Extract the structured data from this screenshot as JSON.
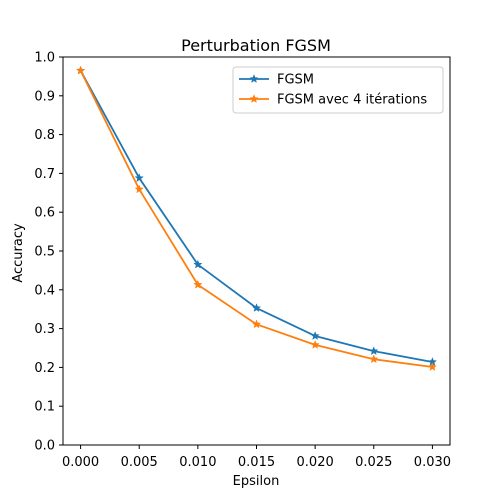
{
  "chart_data": {
    "type": "line",
    "title": "Perturbation FGSM",
    "xlabel": "Epsilon",
    "ylabel": "Accuracy",
    "x": [
      0.0,
      0.005,
      0.01,
      0.015,
      0.02,
      0.025,
      0.03
    ],
    "x_tick_labels": [
      "0.000",
      "0.005",
      "0.010",
      "0.015",
      "0.020",
      "0.025",
      "0.030"
    ],
    "y_ticks": [
      0.0,
      0.1,
      0.2,
      0.3,
      0.4,
      0.5,
      0.6,
      0.7,
      0.8,
      0.9,
      1.0
    ],
    "y_tick_labels": [
      "0.0",
      "0.1",
      "0.2",
      "0.3",
      "0.4",
      "0.5",
      "0.6",
      "0.7",
      "0.8",
      "0.9",
      "1.0"
    ],
    "xlim": [
      -0.0015,
      0.0315
    ],
    "ylim": [
      0.0,
      1.0
    ],
    "grid": false,
    "legend_position": "top-right",
    "marker": "star",
    "series": [
      {
        "name": "FGSM",
        "color": "#1f77b4",
        "values": [
          0.965,
          0.688,
          0.465,
          0.353,
          0.281,
          0.242,
          0.214
        ]
      },
      {
        "name": "FGSM avec 4 itérations",
        "color": "#ff7f0e",
        "values": [
          0.965,
          0.659,
          0.413,
          0.311,
          0.258,
          0.221,
          0.201
        ]
      }
    ]
  }
}
